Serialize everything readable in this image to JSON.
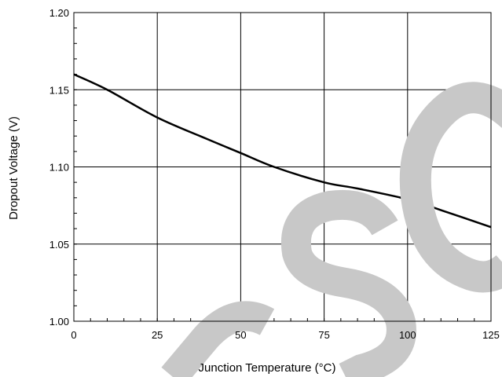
{
  "chart_data": {
    "type": "line",
    "title": "",
    "xlabel": "Junction Temperature (°C)",
    "ylabel": "Dropout Voltage (V)",
    "xlim": [
      0,
      125
    ],
    "ylim": [
      1.0,
      1.2
    ],
    "x_ticks": [
      "0",
      "25",
      "50",
      "75",
      "100",
      "125"
    ],
    "y_ticks": [
      "1.00",
      "1.05",
      "1.10",
      "1.15",
      "1.20"
    ],
    "grid": true,
    "legend": "none",
    "series": [
      {
        "color": "#000000",
        "x": [
          0,
          10,
          25,
          40,
          50,
          60,
          75,
          85,
          100,
          110,
          125
        ],
        "y": [
          1.16,
          1.15,
          1.132,
          1.118,
          1.109,
          1.1,
          1.09,
          1.086,
          1.079,
          1.072,
          1.061
        ]
      }
    ],
    "watermark": {
      "color": "#c8c8c8"
    }
  }
}
